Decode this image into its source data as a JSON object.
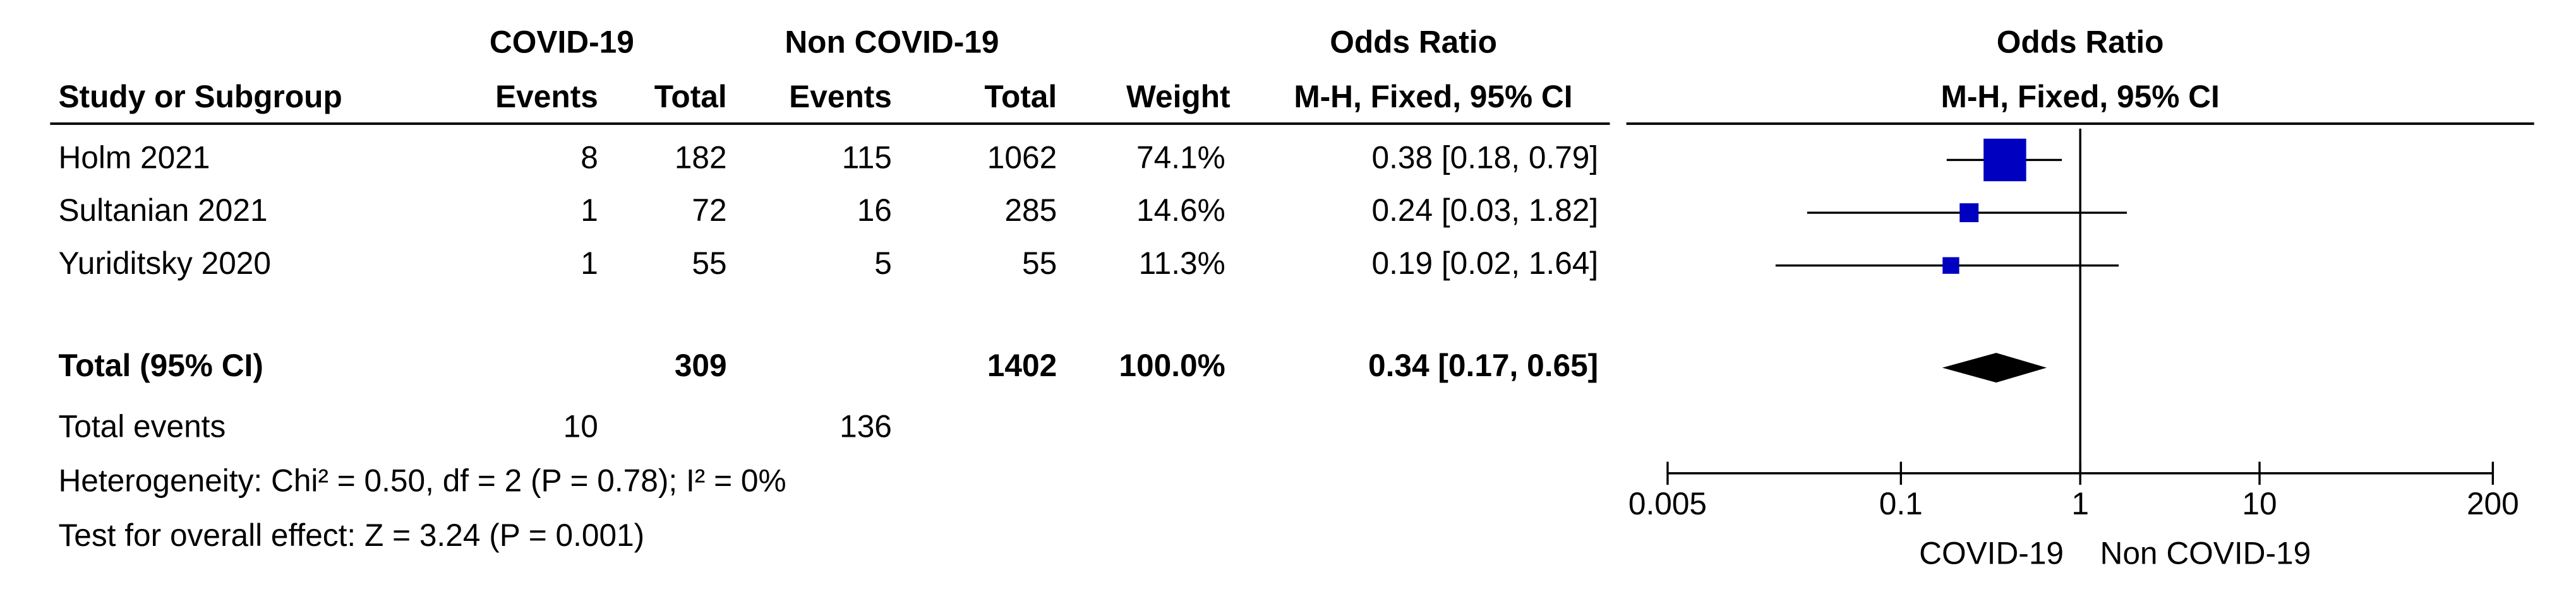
{
  "header": {
    "group1": "COVID-19",
    "group2": "Non COVID-19",
    "effect": "Odds Ratio",
    "plot_title": "Odds Ratio",
    "columns": [
      "Study or Subgroup",
      "Events",
      "Total",
      "Events",
      "Total",
      "Weight",
      "M-H, Fixed, 95% CI"
    ],
    "plot_method": "M-H, Fixed, 95% CI"
  },
  "studies": [
    {
      "name": "Holm 2021",
      "events1": 8,
      "total1": 182,
      "events2": 115,
      "total2": 1062,
      "weight": 74.1,
      "weight_label": "74.1%",
      "or": 0.38,
      "ci_low": 0.18,
      "ci_high": 0.79,
      "or_label": "0.38 [0.18, 0.79]"
    },
    {
      "name": "Sultanian 2021",
      "events1": 1,
      "total1": 72,
      "events2": 16,
      "total2": 285,
      "weight": 14.6,
      "weight_label": "14.6%",
      "or": 0.24,
      "ci_low": 0.03,
      "ci_high": 1.82,
      "or_label": "0.24 [0.03, 1.82]"
    },
    {
      "name": "Yuriditsky 2020",
      "events1": 1,
      "total1": 55,
      "events2": 5,
      "total2": 55,
      "weight": 11.3,
      "weight_label": "11.3%",
      "or": 0.19,
      "ci_low": 0.02,
      "ci_high": 1.64,
      "or_label": "0.19 [0.02, 1.64]"
    }
  ],
  "total": {
    "name": "Total (95% CI)",
    "total1": 309,
    "total2": 1402,
    "weight_label": "100.0%",
    "or": 0.34,
    "ci_low": 0.17,
    "ci_high": 0.65,
    "or_label": "0.34 [0.17, 0.65]"
  },
  "total_events": {
    "label": "Total events",
    "events1": 10,
    "events2": 136
  },
  "heterogeneity": "Heterogeneity: Chi² = 0.50, df = 2 (P = 0.78); I² = 0%",
  "overall_effect": "Test for overall effect: Z = 3.24 (P = 0.001)",
  "axis": {
    "scale": "log",
    "xlim": [
      0.005,
      200
    ],
    "xticks": [
      0.005,
      0.1,
      1,
      10,
      200
    ],
    "favours_left": "COVID-19",
    "favours_right": "Non COVID-19"
  },
  "colors": {
    "square": "#0000c0",
    "diamond": "#000000",
    "line": "#000000"
  }
}
